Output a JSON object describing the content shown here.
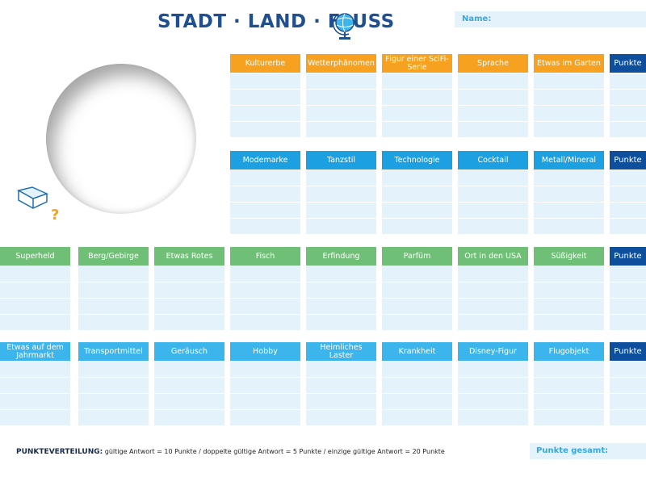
{
  "header": {
    "title": "STADT · LAND · FLUSS",
    "name_label": "Name:"
  },
  "sections": [
    {
      "headers": [
        "Kulturerbe",
        "Wetterphänomen",
        "Figur einer SciFi-Serie",
        "Sprache",
        "Etwas im Garten",
        "Punkte"
      ]
    },
    {
      "headers": [
        "Modemarke",
        "Tanzstil",
        "Technologie",
        "Cocktail",
        "Metall/Mineral",
        "Punkte"
      ]
    },
    {
      "headers": [
        "Superheld",
        "Berg/Gebirge",
        "Etwas Rotes",
        "Fisch",
        "Erfindung",
        "Parfüm",
        "Ort in den USA",
        "Süßigkeit",
        "Punkte"
      ]
    },
    {
      "headers": [
        "Etwas auf dem Jahrmarkt",
        "Transportmittel",
        "Geräusch",
        "Hobby",
        "Heimliches Laster",
        "Krankheit",
        "Disney-Figur",
        "Flugobjekt",
        "Punkte"
      ]
    }
  ],
  "footer": {
    "scoring_label": "PUNKTEVERTEILUNG:",
    "scoring_text": "gültige Antwort = 10 Punkte / doppelte gültige Antwort = 5 Punkte / einzige gültige Antwort = 20 Punkte",
    "total_label": "Punkte gesamt:"
  }
}
